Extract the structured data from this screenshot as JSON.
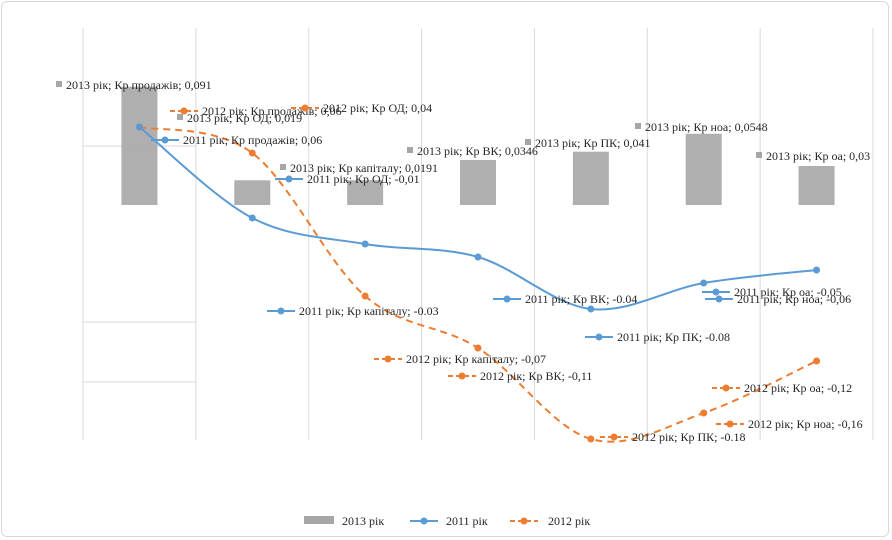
{
  "chart_data": {
    "type": "bar-line-combo",
    "categories": [
      "Кр продажів",
      "Кр ОД",
      "Кр капіталу",
      "Кр ВК",
      "Кр ПК",
      "Крноа",
      "Кр оа"
    ],
    "ylim": [
      -0.2,
      0.12
    ],
    "grid": "vertical",
    "legend": "bottom",
    "series": [
      {
        "name": "2013 рік",
        "kind": "bar",
        "color": "#a6a6a6",
        "values": [
          0.091,
          0.019,
          0.0191,
          0.0346,
          0.041,
          0.0548,
          0.03
        ],
        "labels": [
          "2013 рік; Кр продажів; 0,091",
          "2013 рік; Кр ОД; 0,019",
          "2013 рік; Кр капіталу; 0,0191",
          "2013 рік; Кр ВК; 0,0346",
          "2013 рік; Кр ПК; 0,041",
          "2013 рік; Кр ноа; 0,0548",
          "2013 рік; Кр оа; 0,03"
        ]
      },
      {
        "name": "2011 рік",
        "kind": "line",
        "color": "#5b9bd5",
        "values": [
          0.06,
          -0.01,
          -0.03,
          -0.04,
          -0.08,
          -0.06,
          -0.05
        ],
        "labels": [
          "2011 рік; Кр продажів; 0,06",
          "2011 рік; Кр ОД; -0,01",
          "2011 рік; Кр капіталу; -0.03",
          "2011 рік; Кр ВК; -0.04",
          "2011 рік; Кр ПК; -0.08",
          "2011 рік; Кр ноа; -0,06",
          "2011 рік; Кр оа; -0,05"
        ]
      },
      {
        "name": "2012 рік",
        "kind": "line",
        "color": "#ed7d31",
        "dash": true,
        "values": [
          0.06,
          0.04,
          -0.07,
          -0.11,
          -0.18,
          -0.16,
          -0.12
        ],
        "labels": [
          "2012 рік; Кр продажів; 0,06",
          "2012 рік; Кр ОД; 0,04",
          "2012 рік; Кр капіталу; -0,07",
          "2012 рік; Кр ВК; -0,11",
          "2012 рік; Кр ПК; -0.18",
          "2012 рік; Кр ноа; -0,16",
          "2012 рік; Кр оа; -0,12"
        ]
      }
    ]
  }
}
